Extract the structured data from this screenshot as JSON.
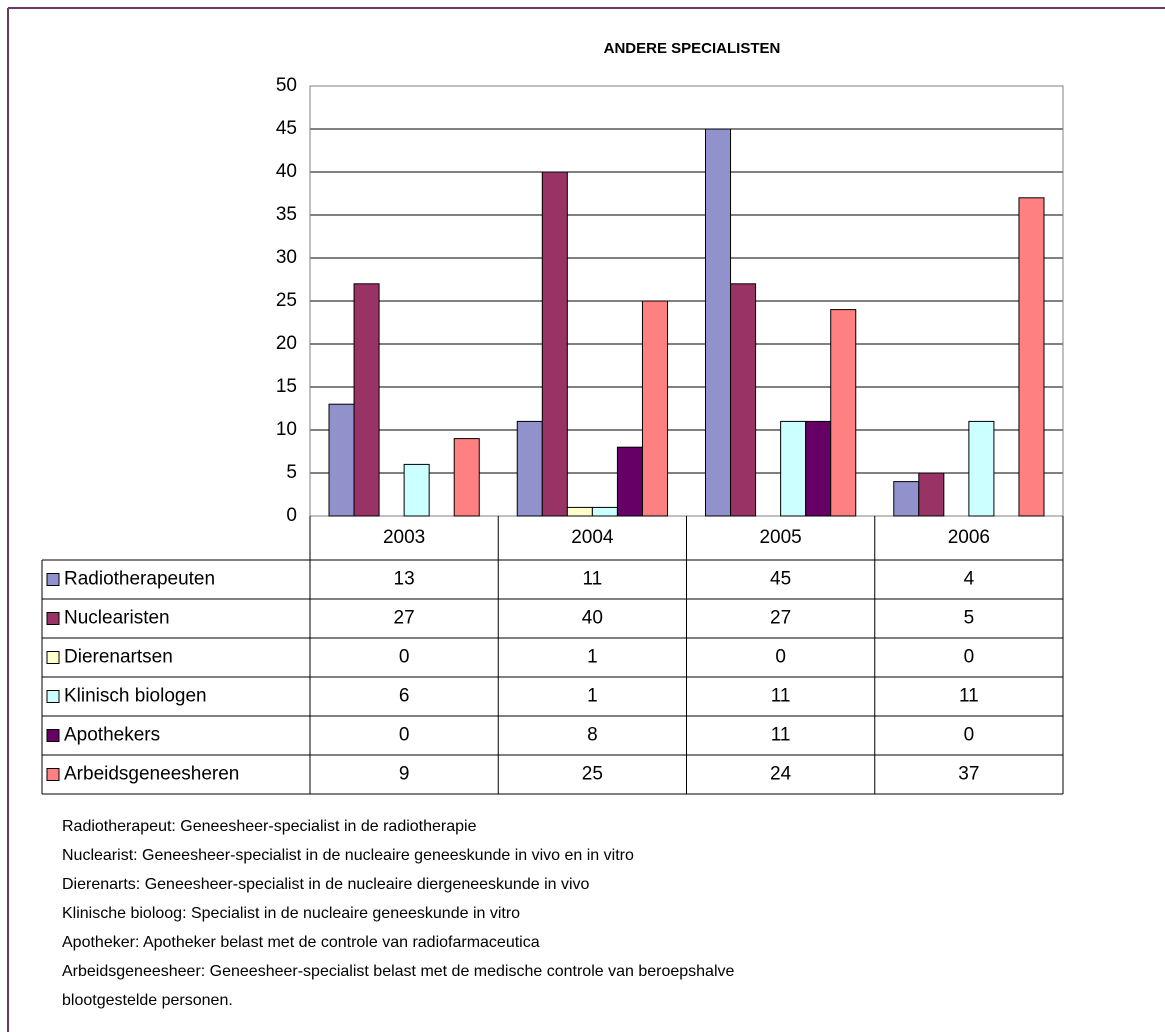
{
  "chart_data": {
    "type": "bar",
    "title": "ANDERE SPECIALISTEN",
    "categories": [
      "2003",
      "2004",
      "2005",
      "2006"
    ],
    "series": [
      {
        "name": "Radiotherapeuten",
        "color": "#9191cc",
        "values": [
          13,
          11,
          45,
          4
        ]
      },
      {
        "name": "Nuclearisten",
        "color": "#993366",
        "values": [
          27,
          40,
          27,
          5
        ]
      },
      {
        "name": "Dierenartsen",
        "color": "#ffffcc",
        "values": [
          0,
          1,
          0,
          0
        ]
      },
      {
        "name": "Klinisch biologen",
        "color": "#ccffff",
        "values": [
          6,
          1,
          11,
          11
        ]
      },
      {
        "name": "Apothekers",
        "color": "#660066",
        "values": [
          0,
          8,
          11,
          0
        ]
      },
      {
        "name": "Arbeidsgeneesheren",
        "color": "#ff8080",
        "values": [
          9,
          25,
          24,
          37
        ]
      }
    ],
    "ylim": [
      0,
      50
    ],
    "yticks": [
      0,
      5,
      10,
      15,
      20,
      25,
      30,
      35,
      40,
      45,
      50
    ],
    "grid": true,
    "footnotes": [
      "Radiotherapeut: Geneesheer-specialist in de radiotherapie",
      "Nuclearist: Geneesheer-specialist in de nucleaire geneeskunde in vivo en in vitro",
      "Dierenarts: Geneesheer-specialist in de nucleaire diergeneeskunde in vivo",
      "Klinische bioloog: Specialist in de nucleaire geneeskunde in vitro",
      "Apotheker: Apotheker belast met de controle van radiofarmaceutica",
      "Arbeidsgeneesheer: Geneesheer-specialist belast met de medische controle van beroepshalve",
      "blootgestelde personen."
    ]
  }
}
